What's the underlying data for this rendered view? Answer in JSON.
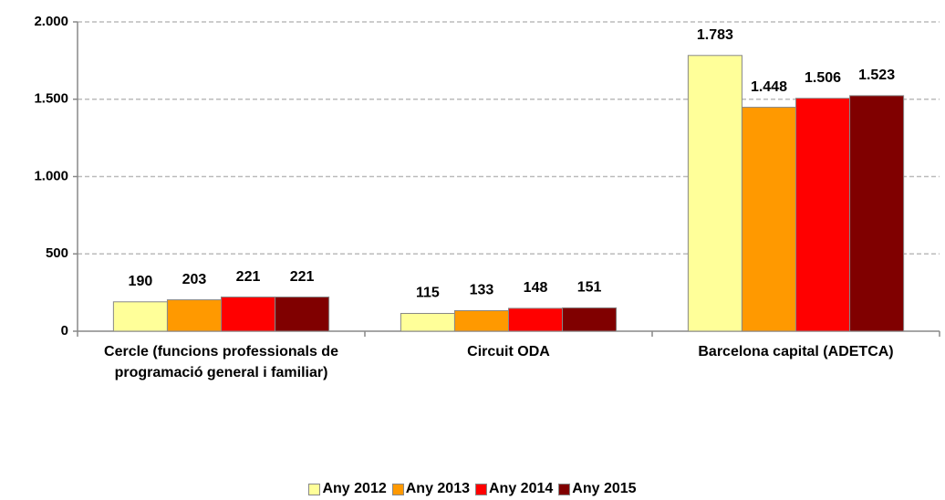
{
  "chart_data": {
    "type": "bar",
    "categories": [
      "Cercle (funcions professionals de programació general i familiar)",
      "Circuit ODA",
      "Barcelona capital (ADETCA)"
    ],
    "series": [
      {
        "name": "Any 2012",
        "color": "#ffff99",
        "values": [
          190,
          115,
          1783
        ],
        "value_labels": [
          "190",
          "115",
          "1.783"
        ]
      },
      {
        "name": "Any 2013",
        "color": "#ff9900",
        "values": [
          203,
          133,
          1448
        ],
        "value_labels": [
          "203",
          "133",
          "1.448"
        ]
      },
      {
        "name": "Any 2014",
        "color": "#ff0000",
        "values": [
          221,
          148,
          1506
        ],
        "value_labels": [
          "221",
          "148",
          "1.506"
        ]
      },
      {
        "name": "Any 2015",
        "color": "#800000",
        "values": [
          221,
          151,
          1523
        ],
        "value_labels": [
          "221",
          "151",
          "1.523"
        ]
      }
    ],
    "ylim": [
      0,
      2000
    ],
    "yticks": [
      0,
      500,
      {
        "value": 1000,
        "label": "1.000"
      },
      {
        "value": 1500,
        "label": "1.500"
      },
      {
        "value": 2000,
        "label": "2.000"
      }
    ],
    "grid": true,
    "legend": "bottom"
  }
}
